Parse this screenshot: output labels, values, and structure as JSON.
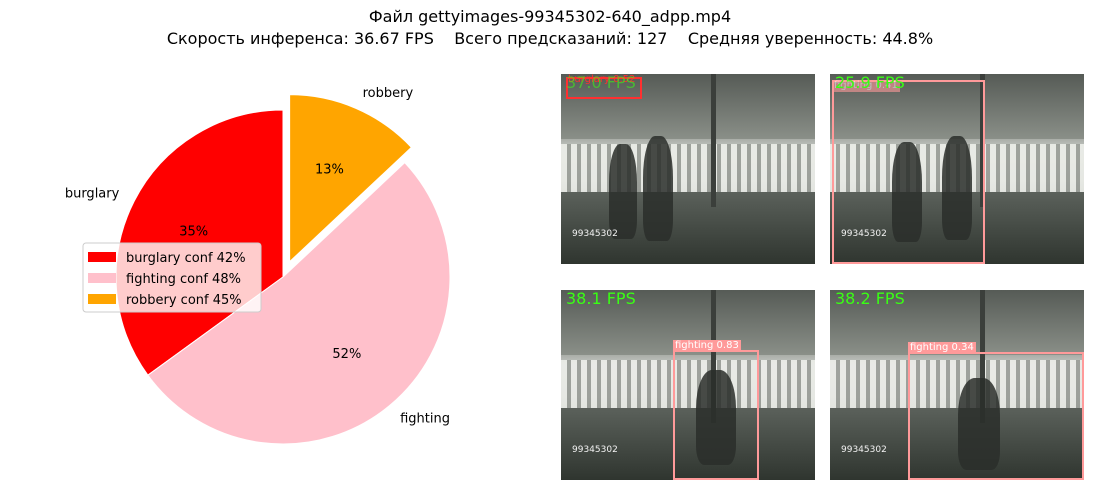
{
  "header": {
    "file_line": "Файл gettyimages-99345302-640_adpp.mp4",
    "stats_line": "Скорость инференса: 36.67 FPS    Всего предсказаний: 127    Средняя уверенность: 44.8%"
  },
  "chart_data": {
    "type": "pie",
    "title": "",
    "slices": [
      {
        "label": "burglary",
        "percent": 35,
        "pct_label": "35%",
        "color": "#ff0000",
        "exploded": false,
        "legend": "burglary conf 42%"
      },
      {
        "label": "fighting",
        "percent": 52,
        "pct_label": "52%",
        "color": "#ffc0cb",
        "exploded": false,
        "legend": "fighting conf 48%"
      },
      {
        "label": "robbery",
        "percent": 13,
        "pct_label": "13%",
        "color": "#ffa500",
        "exploded": true,
        "legend": "robbery conf 45%"
      }
    ],
    "start_angle_deg": 90,
    "direction": "counterclockwise",
    "legend_placement": "center-left"
  },
  "frames": [
    {
      "fps": "37.0 FPS",
      "detection": {
        "label": "burglary 0.52",
        "color": "#ff3030"
      },
      "watermark": "99345302"
    },
    {
      "fps": "25.9 FPS",
      "detection": {
        "label": "fighting 0.41",
        "color": "#ff9a9a"
      },
      "watermark": "99345302"
    },
    {
      "fps": "38.1 FPS",
      "detection": {
        "label": "fighting 0.83",
        "color": "#ff9a9a"
      },
      "watermark": "99345302"
    },
    {
      "fps": "38.2 FPS",
      "detection": {
        "label": "fighting 0.34",
        "color": "#ff9a9a"
      },
      "watermark": "99345302"
    }
  ]
}
